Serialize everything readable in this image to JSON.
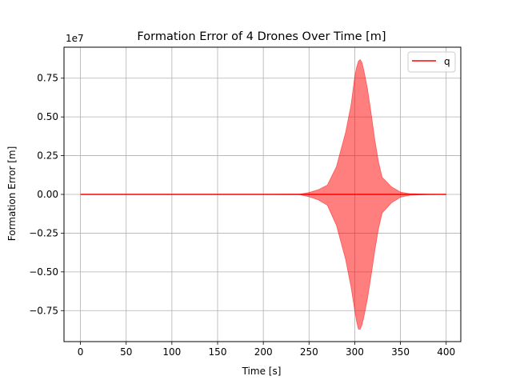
{
  "chart_data": {
    "type": "area",
    "title": "Formation Error of 4 Drones Over Time [m]",
    "xlabel": "Time [s]",
    "ylabel": "Formation Error [m]",
    "offset_label": "1e7",
    "xlim": [
      -18,
      416
    ],
    "ylim": [
      -9500000.0,
      9500000.0
    ],
    "xticks": [
      0,
      50,
      100,
      150,
      200,
      250,
      300,
      350,
      400
    ],
    "xtick_labels": [
      "0",
      "50",
      "100",
      "150",
      "200",
      "250",
      "300",
      "350",
      "400"
    ],
    "yticks": [
      -7500000.0,
      -5000000.0,
      -2500000.0,
      0,
      2500000.0,
      5000000.0,
      7500000.0
    ],
    "ytick_labels": [
      "−0.75",
      "−0.50",
      "−0.25",
      "0.00",
      "0.25",
      "0.50",
      "0.75"
    ],
    "grid": true,
    "legend": {
      "position": "upper right",
      "entries": [
        "q"
      ]
    },
    "series": [
      {
        "name": "q",
        "color": "#ff0000",
        "line": {
          "x": [
            0,
            400
          ],
          "y": [
            0,
            0
          ]
        },
        "band": {
          "x": [
            0,
            200,
            240,
            250,
            260,
            270,
            280,
            290,
            296,
            300,
            302,
            304,
            306,
            308,
            310,
            314,
            318,
            322,
            326,
            330,
            340,
            350,
            360,
            380,
            400
          ],
          "upper": [
            0,
            0,
            20000,
            120000,
            300000,
            600000,
            1800000,
            4000000,
            5800000,
            7600000,
            8200000,
            8600000,
            8700000,
            8500000,
            8000000,
            6800000,
            5200000,
            3500000,
            2100000,
            1100000,
            500000,
            150000,
            50000,
            10000,
            0
          ],
          "lower": [
            0,
            0,
            -20000,
            -150000,
            -350000,
            -700000,
            -2000000,
            -4200000,
            -6000000,
            -7500000,
            -8200000,
            -8700000,
            -8700000,
            -8400000,
            -7900000,
            -6700000,
            -5200000,
            -3600000,
            -2200000,
            -1200000,
            -550000,
            -180000,
            -60000,
            -10000,
            0
          ]
        },
        "band_color": "#ff0000",
        "band_opacity": 0.5
      }
    ]
  }
}
